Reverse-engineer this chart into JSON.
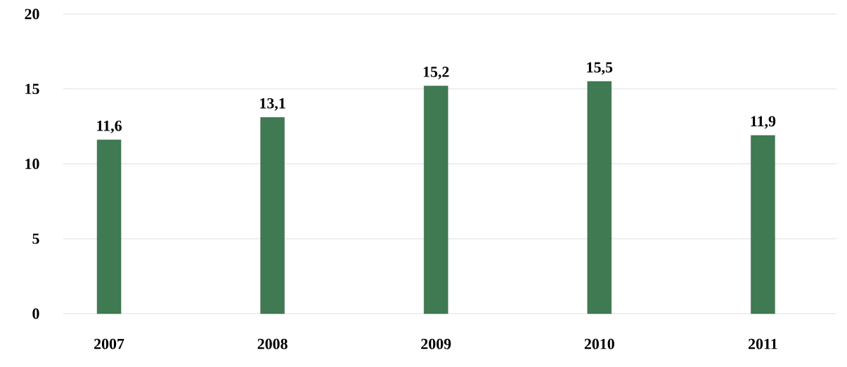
{
  "chart_data": {
    "type": "bar",
    "categories": [
      "2007",
      "2008",
      "2009",
      "2010",
      "2011"
    ],
    "values": [
      11.6,
      13.1,
      15.2,
      15.5,
      11.9
    ],
    "value_labels": [
      "11,6",
      "13,1",
      "15,2",
      "15,5",
      "11,9"
    ],
    "color": "#3f7a52",
    "ylim": [
      0,
      20
    ],
    "yticks": [
      0,
      5,
      10,
      15,
      20
    ],
    "grid": "y"
  }
}
